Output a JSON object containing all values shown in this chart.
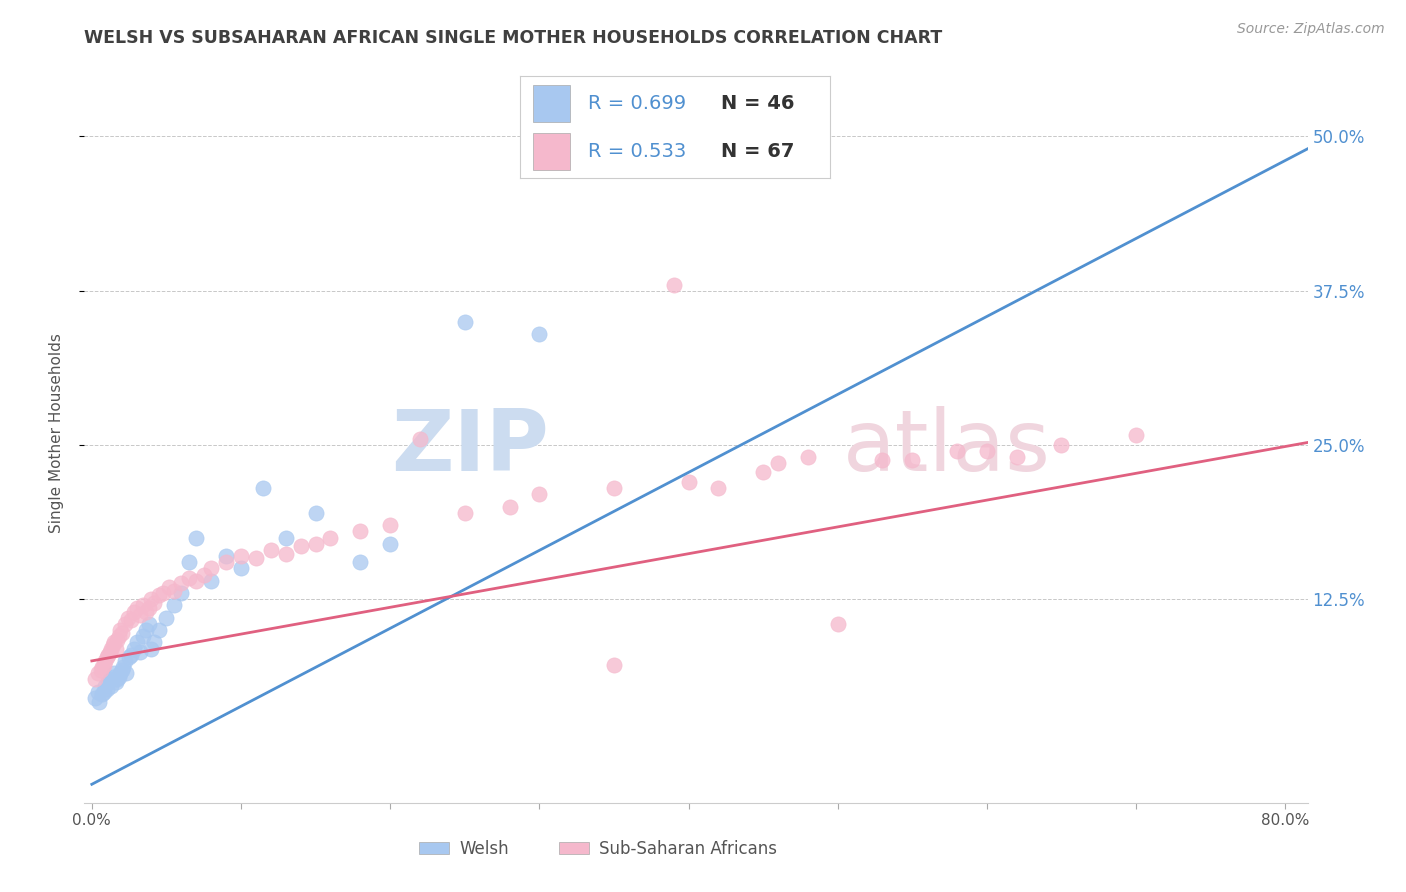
{
  "title": "WELSH VS SUBSAHARAN AFRICAN SINGLE MOTHER HOUSEHOLDS CORRELATION CHART",
  "source": "Source: ZipAtlas.com",
  "ylabel": "Single Mother Households",
  "ytick_labels": [
    "12.5%",
    "25.0%",
    "37.5%",
    "50.0%"
  ],
  "ytick_values": [
    0.125,
    0.25,
    0.375,
    0.5
  ],
  "xlim": [
    -0.005,
    0.815
  ],
  "ylim": [
    -0.04,
    0.56
  ],
  "legend": {
    "welsh_R": "R = 0.699",
    "welsh_N": "N = 46",
    "african_R": "R = 0.533",
    "african_N": "N = 67",
    "welsh_label": "Welsh",
    "african_label": "Sub-Saharan Africans"
  },
  "welsh_color": "#a8c8f0",
  "african_color": "#f5b8cc",
  "welsh_line_color": "#5090d0",
  "african_line_color": "#e06080",
  "background_color": "#ffffff",
  "grid_color": "#c8c8c8",
  "title_color": "#404040",
  "welsh_line_x0": 0.0,
  "welsh_line_y0": -0.025,
  "welsh_line_x1": 0.815,
  "welsh_line_y1": 0.49,
  "african_line_x0": 0.0,
  "african_line_y0": 0.075,
  "african_line_x1": 0.815,
  "african_line_y1": 0.252,
  "welsh_points_x": [
    0.002,
    0.004,
    0.005,
    0.007,
    0.008,
    0.009,
    0.01,
    0.011,
    0.012,
    0.013,
    0.014,
    0.015,
    0.016,
    0.017,
    0.018,
    0.019,
    0.02,
    0.021,
    0.022,
    0.023,
    0.025,
    0.026,
    0.028,
    0.03,
    0.032,
    0.034,
    0.036,
    0.038,
    0.04,
    0.042,
    0.045,
    0.05,
    0.055,
    0.06,
    0.065,
    0.07,
    0.08,
    0.09,
    0.1,
    0.115,
    0.13,
    0.15,
    0.18,
    0.2,
    0.25,
    0.3
  ],
  "welsh_points_y": [
    0.045,
    0.05,
    0.042,
    0.048,
    0.05,
    0.055,
    0.052,
    0.058,
    0.06,
    0.055,
    0.062,
    0.065,
    0.058,
    0.06,
    0.062,
    0.065,
    0.068,
    0.07,
    0.075,
    0.065,
    0.078,
    0.08,
    0.085,
    0.09,
    0.082,
    0.095,
    0.1,
    0.105,
    0.085,
    0.09,
    0.1,
    0.11,
    0.12,
    0.13,
    0.155,
    0.175,
    0.14,
    0.16,
    0.15,
    0.215,
    0.175,
    0.195,
    0.155,
    0.17,
    0.35,
    0.34
  ],
  "african_points_x": [
    0.002,
    0.004,
    0.006,
    0.007,
    0.008,
    0.009,
    0.01,
    0.011,
    0.012,
    0.013,
    0.014,
    0.015,
    0.016,
    0.017,
    0.018,
    0.019,
    0.02,
    0.022,
    0.024,
    0.026,
    0.028,
    0.03,
    0.032,
    0.034,
    0.036,
    0.038,
    0.04,
    0.042,
    0.045,
    0.048,
    0.052,
    0.055,
    0.06,
    0.065,
    0.07,
    0.075,
    0.08,
    0.09,
    0.1,
    0.11,
    0.12,
    0.13,
    0.14,
    0.15,
    0.16,
    0.18,
    0.2,
    0.22,
    0.25,
    0.28,
    0.3,
    0.35,
    0.4,
    0.45,
    0.5,
    0.55,
    0.42,
    0.48,
    0.39,
    0.46,
    0.35,
    0.6,
    0.65,
    0.7,
    0.62,
    0.53,
    0.58
  ],
  "african_points_y": [
    0.06,
    0.065,
    0.068,
    0.07,
    0.072,
    0.075,
    0.078,
    0.08,
    0.082,
    0.085,
    0.088,
    0.09,
    0.085,
    0.092,
    0.095,
    0.1,
    0.098,
    0.105,
    0.11,
    0.108,
    0.115,
    0.118,
    0.112,
    0.12,
    0.115,
    0.118,
    0.125,
    0.122,
    0.128,
    0.13,
    0.135,
    0.132,
    0.138,
    0.142,
    0.14,
    0.145,
    0.15,
    0.155,
    0.16,
    0.158,
    0.165,
    0.162,
    0.168,
    0.17,
    0.175,
    0.18,
    0.185,
    0.255,
    0.195,
    0.2,
    0.21,
    0.215,
    0.22,
    0.228,
    0.105,
    0.238,
    0.215,
    0.24,
    0.38,
    0.235,
    0.072,
    0.245,
    0.25,
    0.258,
    0.24,
    0.238,
    0.245
  ],
  "watermark_zip_color": "#ccdcf0",
  "watermark_atlas_color": "#f0d5de"
}
